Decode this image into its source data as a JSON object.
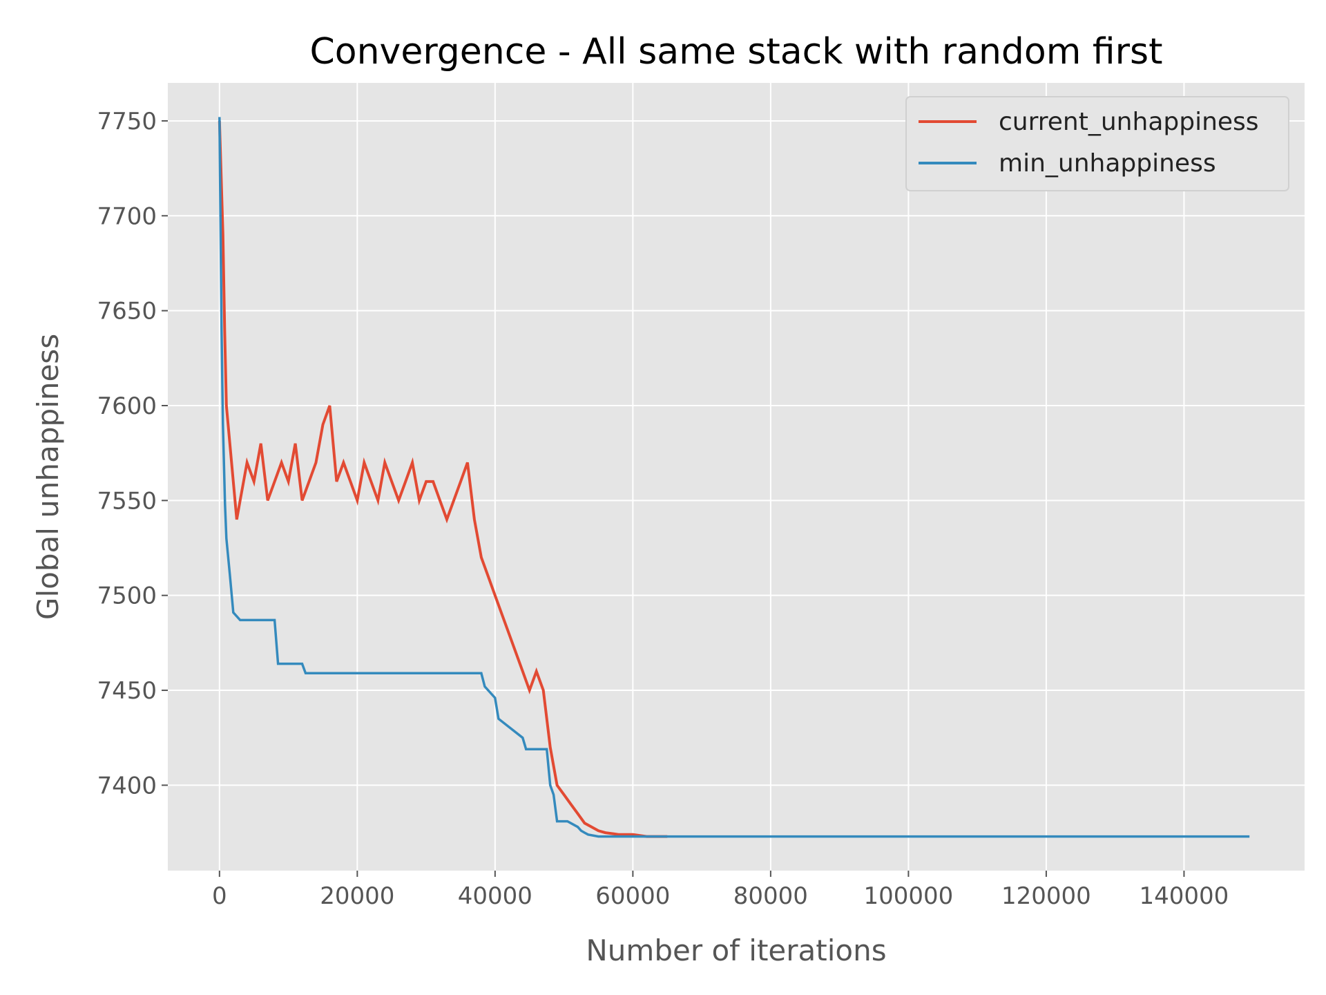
{
  "chart_data": {
    "type": "line",
    "title": "Convergence - All same stack with random first",
    "xlabel": "Number of iterations",
    "ylabel": "Global unhappiness",
    "xlim": [
      -7500,
      157500
    ],
    "ylim": [
      7355,
      7770
    ],
    "xticks": [
      0,
      20000,
      40000,
      60000,
      80000,
      100000,
      120000,
      140000
    ],
    "xtick_labels": [
      "0",
      "20000",
      "40000",
      "60000",
      "80000",
      "100000",
      "120000",
      "140000"
    ],
    "yticks": [
      7400,
      7450,
      7500,
      7550,
      7600,
      7650,
      7700,
      7750
    ],
    "ytick_labels": [
      "7400",
      "7450",
      "7500",
      "7550",
      "7600",
      "7650",
      "7700",
      "7750"
    ],
    "grid": true,
    "legend_position": "top-right",
    "colors": {
      "background": "#e5e5e5",
      "grid": "#ffffff",
      "current": "#e24a33",
      "min": "#348abd"
    },
    "series": [
      {
        "name": "current_unhappiness",
        "color": "#e24a33",
        "x": [
          0,
          250,
          500,
          750,
          1000,
          1500,
          2000,
          2500,
          3000,
          4000,
          5000,
          6000,
          7000,
          8000,
          9000,
          10000,
          11000,
          12000,
          13000,
          14000,
          15000,
          16000,
          17000,
          18000,
          19000,
          20000,
          21000,
          22000,
          23000,
          24000,
          25000,
          26000,
          27000,
          28000,
          29000,
          30000,
          31000,
          32000,
          33000,
          34000,
          35000,
          36000,
          37000,
          38000,
          39000,
          40000,
          41000,
          42000,
          43000,
          44000,
          45000,
          46000,
          47000,
          48000,
          49000,
          50000,
          51000,
          52000,
          53000,
          54000,
          55000,
          56000,
          58000,
          60000,
          62000,
          64000,
          65000
        ],
        "y": [
          7750,
          7720,
          7690,
          7640,
          7600,
          7580,
          7560,
          7540,
          7550,
          7570,
          7560,
          7580,
          7550,
          7560,
          7570,
          7560,
          7580,
          7550,
          7560,
          7570,
          7590,
          7600,
          7560,
          7570,
          7560,
          7550,
          7570,
          7560,
          7550,
          7570,
          7560,
          7550,
          7560,
          7570,
          7550,
          7560,
          7560,
          7550,
          7540,
          7550,
          7560,
          7570,
          7540,
          7520,
          7510,
          7500,
          7490,
          7480,
          7470,
          7460,
          7450,
          7460,
          7450,
          7420,
          7400,
          7395,
          7390,
          7385,
          7380,
          7378,
          7376,
          7375,
          7374,
          7374,
          7373,
          7373,
          7373
        ]
      },
      {
        "name": "min_unhappiness",
        "color": "#348abd",
        "x": [
          0,
          300,
          500,
          800,
          1000,
          1500,
          2000,
          3000,
          8000,
          8500,
          12000,
          12500,
          38000,
          38500,
          40000,
          40500,
          44000,
          44500,
          47500,
          48000,
          48500,
          49000,
          50500,
          51000,
          52000,
          52500,
          53000,
          53500,
          55000,
          149500
        ],
        "y": [
          7752,
          7640,
          7590,
          7548,
          7530,
          7511,
          7491,
          7487,
          7487,
          7464,
          7464,
          7459,
          7459,
          7452,
          7446,
          7435,
          7425,
          7419,
          7419,
          7400,
          7395,
          7381,
          7381,
          7380,
          7378,
          7376,
          7375,
          7374,
          7373,
          7373
        ]
      }
    ]
  }
}
